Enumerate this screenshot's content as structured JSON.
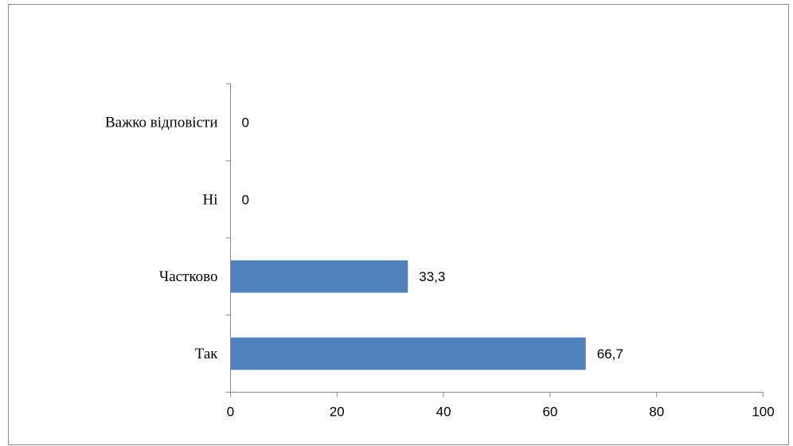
{
  "chart_data": {
    "type": "bar",
    "orientation": "horizontal",
    "categories": [
      "Так",
      "Частково",
      "Ні",
      "Важко відповісти"
    ],
    "values": [
      66.7,
      33.3,
      0,
      0
    ],
    "data_labels": [
      "66,7",
      "33,3",
      "0",
      "0"
    ],
    "x_ticks": [
      "0",
      "20",
      "40",
      "60",
      "80",
      "100"
    ],
    "xlim": [
      0,
      100
    ],
    "title": "",
    "xlabel": "",
    "ylabel": "",
    "grid": false,
    "legend": "none",
    "bar_color": "#4f81bd"
  }
}
